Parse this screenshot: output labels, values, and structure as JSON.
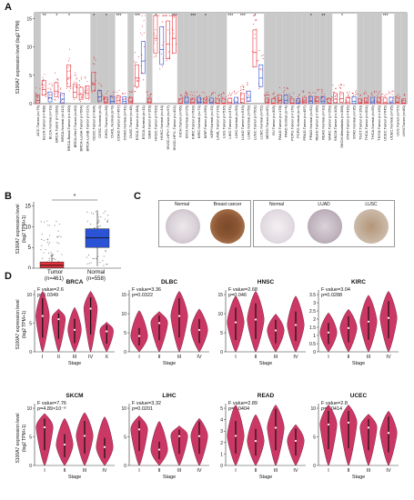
{
  "panels": {
    "a": "A",
    "b": "B",
    "c": "C",
    "d": "D"
  },
  "panel_a": {
    "ylabel": "S100A7 expression level (log2 TPM)",
    "yticks": [
      "0",
      "5",
      "10",
      "15"
    ],
    "sig_marks": [
      "**",
      "*",
      "*",
      "*",
      "*",
      "***",
      "***",
      "*",
      "***",
      "***",
      "*",
      "***",
      "***",
      "*",
      "*",
      "**",
      "*",
      "***"
    ],
    "categories": [
      "ACC.Tumor (n=79)",
      "BLCA.Tumor (n=408)",
      "BLCA.Normal (n=19)",
      "BRCA.Tumor (n=1093)",
      "BRCA.Normal (n=112)",
      "BRCA-Basal.Tumor (n=190)",
      "BRCA-Her2.Tumor (n=82)",
      "BRCA-LumA.Tumor (n=564)",
      "BRCA-LumB.Tumor (n=217)",
      "CESC.Tumor (n=304)",
      "CESC.Normal (n=3)",
      "CHOL.Tumor (n=36)",
      "CHOL.Normal (n=9)",
      "COAD.Tumor (n=457)",
      "COAD.Normal (n=41)",
      "DLBC.Tumor (n=48)",
      "ESCA.Tumor (n=184)",
      "ESCA.Normal (n=11)",
      "GBM.Tumor (n=153)",
      "HNSC.Tumor (n=520)",
      "HNSC.Normal (n=44)",
      "HNSC-HPV+.Tumor (n=97)",
      "HNSC-HPV-.Tumor (n=421)",
      "KICH.Tumor (n=66)",
      "KICH.Normal (n=25)",
      "KIRC.Tumor (n=533)",
      "KIRC.Normal (n=72)",
      "KIRP.Tumor (n=290)",
      "KIRP.Normal (n=32)",
      "LAML.Tumor (n=173)",
      "LGG.Tumor (n=516)",
      "LIHC.Tumor (n=371)",
      "LIHC.Normal (n=50)",
      "LUAD.Tumor (n=515)",
      "LUAD.Normal (n=59)",
      "LUSC.Tumor (n=501)",
      "LUSC.Normal (n=52)",
      "MESO.Tumor (n=87)",
      "OV.Tumor (n=303)",
      "PAAD.Tumor (n=178)",
      "PAAD.Normal (n=4)",
      "PCPG.Tumor (n=179)",
      "PCPG.Normal (n=3)",
      "PRAD.Tumor (n=497)",
      "PRAD.Normal (n=52)",
      "READ.Tumor (n=166)",
      "READ.Normal (n=10)",
      "SARC.Tumor (n=259)",
      "SKCM.Tumor (n=103)",
      "SKCM.Metastasis (n=368)",
      "STAD.Tumor (n=415)",
      "STAD.Normal (n=35)",
      "TGCT.Tumor (n=150)",
      "THCA.Tumor (n=501)",
      "THCA.Normal (n=59)",
      "THYM.Tumor (n=120)",
      "UCEC.Tumor (n=545)",
      "UCEC.Normal (n=35)",
      "UCS.Tumor (n=57)",
      "UVM.Tumor (n=80)"
    ]
  },
  "panel_b": {
    "ylabel1": "S100A7 expression level",
    "ylabel2": "(log2 TPM+1)",
    "yticks": [
      "0",
      "5",
      "10",
      "15"
    ],
    "star": "*",
    "groups": [
      {
        "name": "Tumor",
        "n": "(n=461)",
        "color": "#e8323c"
      },
      {
        "name": "Normal",
        "n": "(n=558)",
        "color": "#2b53d6"
      }
    ]
  },
  "panel_c": {
    "labels": [
      "Normal",
      "Breast cancer",
      "Normal",
      "LUAD",
      "LUSC"
    ]
  },
  "panel_d": {
    "ylabel1": "S100A7 expression level",
    "ylabel2": "(log2 TPM+1)",
    "xlabel": "Stage",
    "plots": [
      {
        "title": "BRCA",
        "f": "F value=2.6",
        "p": "p=0.0349",
        "yticks": [
          "0",
          "5",
          "10"
        ],
        "xticks": [
          "I",
          "II",
          "III",
          "IV",
          "X"
        ]
      },
      {
        "title": "DLBC",
        "f": "F value=3.36",
        "p": "p=0.0322",
        "yticks": [
          "0",
          "5",
          "10",
          "15"
        ],
        "xticks": [
          "I",
          "II",
          "III",
          "IV"
        ]
      },
      {
        "title": "HNSC",
        "f": "F value=2.68",
        "p": "p=0.046",
        "yticks": [
          "0",
          "5",
          "10",
          "15"
        ],
        "xticks": [
          "I",
          "II",
          "III",
          "IV"
        ]
      },
      {
        "title": "KIRC",
        "f": "F value=3.04",
        "p": "p=0.0288",
        "yticks": [
          "0",
          "0.5",
          "1",
          "1.5",
          "2",
          "2.5",
          "3",
          "3.5"
        ],
        "xticks": [
          "I",
          "II",
          "III",
          "IV"
        ]
      },
      {
        "title": "SKCM",
        "f": "F value=7.76",
        "p": "p=4.89×10⁻⁸",
        "yticks": [
          "0",
          "5",
          "10"
        ],
        "xticks": [
          "I",
          "II",
          "III",
          "IV"
        ]
      },
      {
        "title": "LIHC",
        "f": "F value=3.32",
        "p": "p=0.0201",
        "yticks": [
          "0",
          "5",
          "10"
        ],
        "xticks": [
          "I",
          "II",
          "III",
          "IV"
        ]
      },
      {
        "title": "READ",
        "f": "F value=2.89",
        "p": "p=0.0404",
        "yticks": [
          "0",
          "1",
          "2",
          "3",
          "4",
          "5"
        ],
        "xticks": [
          "I",
          "II",
          "III",
          "IV"
        ]
      },
      {
        "title": "UCEC",
        "f": "F value=2.8",
        "p": "p=0.0414",
        "yticks": [
          "0",
          "5",
          "10"
        ],
        "xticks": [
          "I",
          "II",
          "III",
          "IV"
        ]
      }
    ]
  },
  "colors": {
    "tumor": "#e8323c",
    "normal": "#2b53d6",
    "gray_band": "#c9c9c9",
    "violin": "#c8285a"
  }
}
